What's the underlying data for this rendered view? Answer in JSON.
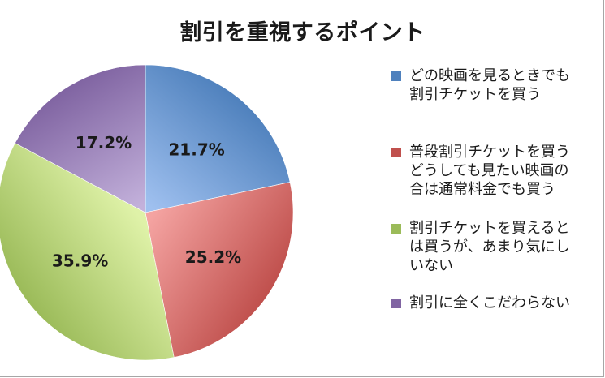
{
  "chart_data": {
    "type": "pie",
    "title": "割引を重視するポイント",
    "slices": [
      {
        "label_lines": [
          "どの映画を見るときでも",
          "割引チケットを買う"
        ],
        "value": 21.7,
        "value_label": "21.7%",
        "color": "#4f81bd",
        "color_light": "#9fc0ef"
      },
      {
        "label_lines": [
          "普段割引チケットを買う",
          "どうしても見たい映画の",
          "合は通常料金でも買う"
        ],
        "value": 25.2,
        "value_label": "25.2%",
        "color": "#c0504d",
        "color_light": "#f4a3a1"
      },
      {
        "label_lines": [
          "割引チケットを買えると",
          "は買うが、あまり気にし",
          "いない"
        ],
        "value": 35.9,
        "value_label": "35.9%",
        "color": "#9bbb59",
        "color_light": "#dff2a8"
      },
      {
        "label_lines": [
          "割引に全くこだわらない"
        ],
        "value": 17.2,
        "value_label": "17.2%",
        "color": "#8064a2",
        "color_light": "#c3b1db"
      }
    ],
    "legend_position": "right",
    "start_angle": "top",
    "direction": "clockwise"
  }
}
